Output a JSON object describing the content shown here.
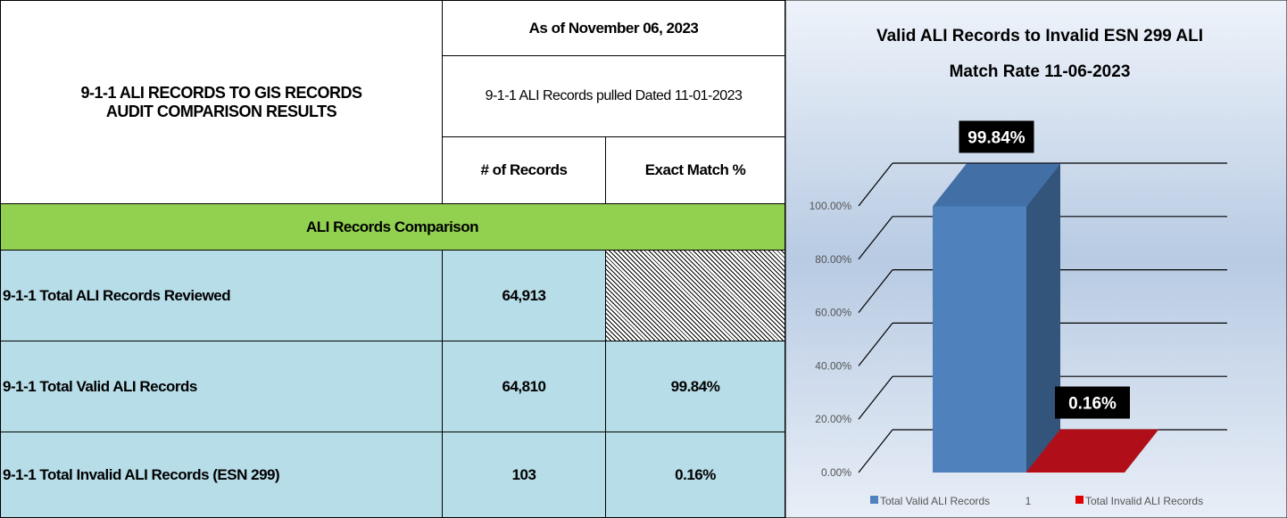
{
  "table": {
    "title": [
      "9-1-1 ALI RECORDS TO GIS RECORDS",
      "AUDIT COMPARISON RESULTS"
    ],
    "as_of": "As of November 06, 2023",
    "pulled": "9-1-1 ALI Records pulled Dated 11-01-2023",
    "columns": [
      "# of Records",
      "Exact Match %"
    ],
    "section": "ALI Records Comparison",
    "rows": [
      {
        "label": "9-1-1 Total ALI Records Reviewed",
        "records": "64,913"
      },
      {
        "label": "9-1-1 Total Valid ALI Records",
        "records": "64,810",
        "match": "99.84%"
      },
      {
        "label": "9-1-1 Total Invalid ALI Records (ESN 299)",
        "records": "103",
        "match": "0.16%"
      }
    ]
  },
  "chart_data": {
    "type": "bar3d",
    "title": [
      "Valid ALI Records to Invalid ESN 299 ALI",
      "Match Rate 11-06-2023"
    ],
    "categories": [
      "1"
    ],
    "series": [
      {
        "name": "Total Valid ALI Records",
        "color": "#4f81bd",
        "values": [
          99.84
        ],
        "value_labels": [
          "99.84%"
        ]
      },
      {
        "name": "Total Invalid ALI Records",
        "color": "#e00000",
        "values": [
          0.16
        ],
        "value_labels": [
          "0.16%"
        ]
      }
    ],
    "ylim": [
      0,
      100
    ],
    "yticks": [
      {
        "value": 0,
        "label": "0.00%"
      },
      {
        "value": 20,
        "label": "20.00%"
      },
      {
        "value": 40,
        "label": "40.00%"
      },
      {
        "value": 60,
        "label": "60.00%"
      },
      {
        "value": 80,
        "label": "80.00%"
      },
      {
        "value": 100,
        "label": "100.00%"
      }
    ],
    "grid": true
  }
}
